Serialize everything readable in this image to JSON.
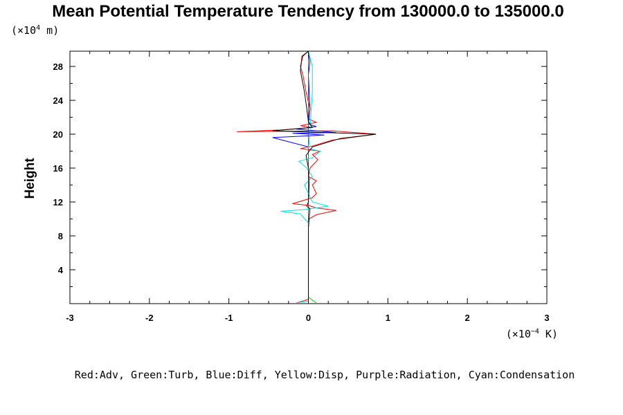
{
  "chart_data": {
    "type": "line",
    "title": "Mean Potential Temperature Tendency from 130000.0 to 135000.0",
    "y_unit_prefix": "(×10",
    "y_unit_exp": "4",
    "y_unit_suffix": " m)",
    "x_unit_prefix": "(×10",
    "x_unit_exp": "−4",
    "x_unit_suffix": " K)",
    "ylabel": "Height",
    "xlabel": "",
    "xlim": [
      -3,
      3
    ],
    "ylim": [
      0,
      29.8
    ],
    "x_ticks": [
      "-3",
      "-2",
      "-1",
      "0",
      "1",
      "2",
      "3"
    ],
    "y_ticks": [
      "4",
      "8",
      "12",
      "16",
      "20",
      "24",
      "28"
    ],
    "legend_text": "Red:Adv, Green:Turb, Blue:Diff, Yellow:Disp, Purple:Radiation, Cyan:Condensation",
    "grid": false,
    "series": [
      {
        "name": "Adv",
        "color": "#ff0000",
        "points": [
          [
            -0.15,
            0.1
          ],
          [
            0,
            0.5
          ],
          [
            0,
            5
          ],
          [
            0,
            9
          ],
          [
            0.01,
            10
          ],
          [
            0.1,
            10.5
          ],
          [
            0.35,
            11
          ],
          [
            0.1,
            11.3
          ],
          [
            0,
            11.6
          ],
          [
            -0.2,
            11.8
          ],
          [
            0.05,
            12.5
          ],
          [
            0.1,
            13
          ],
          [
            0.05,
            14
          ],
          [
            0.1,
            14.5
          ],
          [
            0,
            15
          ],
          [
            0.02,
            16
          ],
          [
            0.12,
            17
          ],
          [
            0.05,
            17.6
          ],
          [
            0.15,
            18
          ],
          [
            -0.1,
            18.3
          ],
          [
            0.05,
            18.6
          ],
          [
            0.3,
            19.3
          ],
          [
            0.85,
            20.0
          ],
          [
            0.3,
            20.4
          ],
          [
            -0.9,
            20.3
          ],
          [
            -0.35,
            20.5
          ],
          [
            0.05,
            20.8
          ],
          [
            -0.1,
            21.0
          ],
          [
            0.1,
            21.4
          ],
          [
            0,
            21.8
          ],
          [
            0.02,
            23
          ],
          [
            -0.03,
            25
          ],
          [
            -0.07,
            27
          ],
          [
            -0.1,
            28
          ],
          [
            -0.07,
            29.2
          ],
          [
            0,
            29.8
          ]
        ]
      },
      {
        "name": "Turb",
        "color": "#00cc00",
        "points": [
          [
            0.1,
            0.1
          ],
          [
            0.05,
            0.4
          ],
          [
            0,
            0.8
          ],
          [
            0,
            10
          ],
          [
            0,
            20
          ],
          [
            0,
            29.8
          ]
        ]
      },
      {
        "name": "Diff",
        "color": "#0000ff",
        "points": [
          [
            0,
            0
          ],
          [
            0,
            10
          ],
          [
            0,
            18.5
          ],
          [
            -0.45,
            19.6
          ],
          [
            0.2,
            19.9
          ],
          [
            -0.2,
            20.1
          ],
          [
            0.35,
            20.2
          ],
          [
            -0.15,
            20.6
          ],
          [
            0.1,
            20.9
          ],
          [
            0,
            21.2
          ],
          [
            0.02,
            23
          ],
          [
            0,
            27
          ],
          [
            0.02,
            28.6
          ],
          [
            0,
            29.5
          ]
        ]
      },
      {
        "name": "Disp",
        "color": "#dddd00",
        "points": [
          [
            0,
            0
          ],
          [
            0,
            29.8
          ]
        ]
      },
      {
        "name": "Radiation",
        "color": "#cc00cc",
        "points": [
          [
            0,
            0
          ],
          [
            0,
            29.8
          ]
        ]
      },
      {
        "name": "Condensation",
        "color": "#00e0e0",
        "points": [
          [
            -0.15,
            0.1
          ],
          [
            0,
            0.3
          ],
          [
            0,
            9.5
          ],
          [
            -0.1,
            10.6
          ],
          [
            -0.35,
            10.9
          ],
          [
            -0.05,
            11.1
          ],
          [
            0.25,
            11.5
          ],
          [
            0.05,
            12
          ],
          [
            0,
            13
          ],
          [
            -0.05,
            14
          ],
          [
            0.05,
            15
          ],
          [
            -0.02,
            16
          ],
          [
            -0.12,
            16.8
          ],
          [
            0.05,
            17.2
          ],
          [
            0.15,
            18
          ],
          [
            0,
            18.3
          ],
          [
            0.02,
            20
          ],
          [
            0.03,
            22
          ],
          [
            0.05,
            25
          ],
          [
            0.05,
            28
          ],
          [
            0,
            29.8
          ]
        ]
      },
      {
        "name": "",
        "color": "#000000",
        "points": [
          [
            0,
            0
          ],
          [
            0,
            9
          ],
          [
            0.02,
            11.2
          ],
          [
            -0.02,
            11.5
          ],
          [
            0,
            12
          ],
          [
            0.01,
            14
          ],
          [
            0,
            16
          ],
          [
            -0.03,
            17.5
          ],
          [
            0.05,
            18.5
          ],
          [
            0.4,
            19.5
          ],
          [
            0.85,
            20.0
          ],
          [
            -0.15,
            20.3
          ],
          [
            -0.45,
            20.4
          ],
          [
            -0.2,
            20.6
          ],
          [
            0.05,
            20.8
          ],
          [
            0,
            21.5
          ],
          [
            -0.02,
            23
          ],
          [
            -0.05,
            25
          ],
          [
            -0.1,
            27.5
          ],
          [
            -0.08,
            29.2
          ],
          [
            0,
            29.8
          ]
        ]
      }
    ]
  }
}
